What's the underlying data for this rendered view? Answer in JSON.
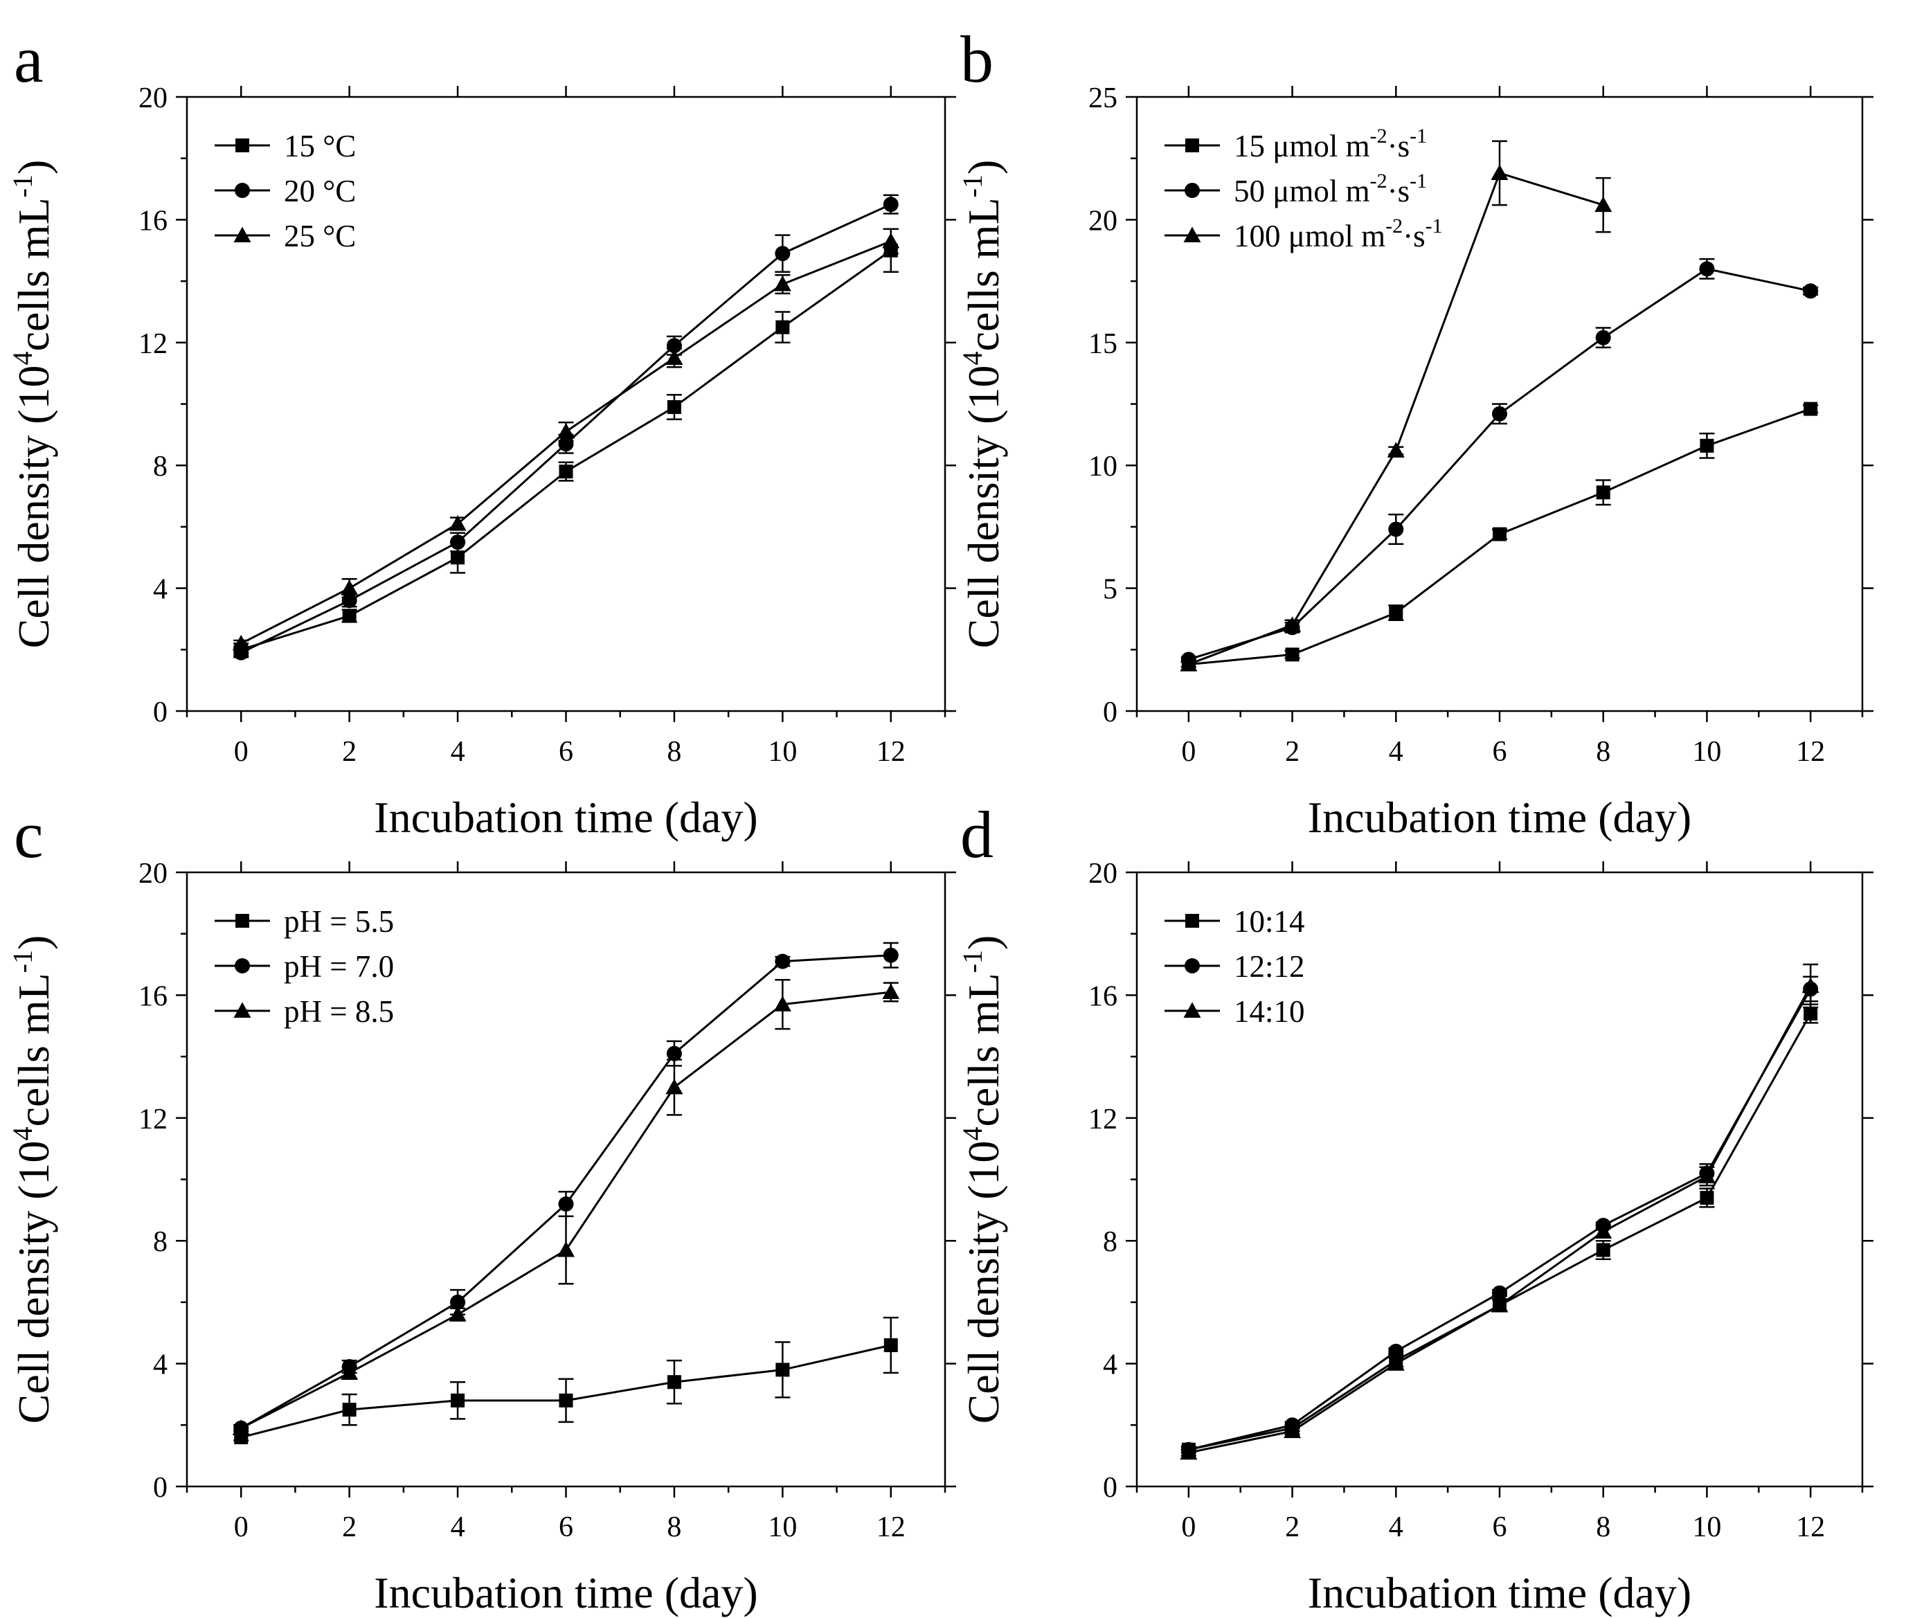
{
  "chart_data": [
    {
      "panel_label": "a",
      "type": "line",
      "xlabel": "Incubation time (day)",
      "ylabel": "Cell density (10",
      "ylabel_sup": "4",
      "ylabel_tail": "cells mL",
      "ylabel_tail_sup": "-1",
      "ylabel_end": ")",
      "xlim": [
        -1,
        13
      ],
      "ylim": [
        0,
        20
      ],
      "xticks": [
        0,
        2,
        4,
        6,
        8,
        10,
        12
      ],
      "yticks": [
        0,
        4,
        8,
        12,
        16,
        20
      ],
      "legend_position": "top-left",
      "series": [
        {
          "name": "15 °C",
          "marker": "square",
          "label_parts": [
            [
              "15 °C",
              ""
            ]
          ],
          "x": [
            0,
            2,
            4,
            6,
            8,
            10,
            12
          ],
          "y": [
            2.0,
            3.1,
            5.0,
            7.8,
            9.9,
            12.5,
            15.0
          ],
          "err": [
            0.2,
            0.2,
            0.5,
            0.3,
            0.4,
            0.5,
            0.7
          ]
        },
        {
          "name": "20 °C",
          "marker": "circle",
          "label_parts": [
            [
              "20 °C",
              ""
            ]
          ],
          "x": [
            0,
            2,
            4,
            6,
            8,
            10,
            12
          ],
          "y": [
            1.9,
            3.6,
            5.5,
            8.7,
            11.9,
            14.9,
            16.5
          ],
          "err": [
            0.15,
            0.2,
            0.3,
            0.3,
            0.3,
            0.6,
            0.3
          ]
        },
        {
          "name": "25 °C",
          "marker": "triangle",
          "label_parts": [
            [
              "25 °C",
              ""
            ]
          ],
          "x": [
            0,
            2,
            4,
            6,
            8,
            10,
            12
          ],
          "y": [
            2.2,
            4.0,
            6.1,
            9.1,
            11.5,
            13.9,
            15.3
          ],
          "err": [
            0.1,
            0.3,
            0.2,
            0.3,
            0.3,
            0.3,
            0.4
          ]
        }
      ]
    },
    {
      "panel_label": "b",
      "type": "line",
      "xlabel": "Incubation time (day)",
      "ylabel": "Cell density (10",
      "ylabel_sup": "4",
      "ylabel_tail": "cells mL",
      "ylabel_tail_sup": "-1",
      "ylabel_end": ")",
      "xlim": [
        -1,
        13
      ],
      "ylim": [
        0,
        25
      ],
      "xticks": [
        0,
        2,
        4,
        6,
        8,
        10,
        12
      ],
      "yticks": [
        0,
        5,
        10,
        15,
        20,
        25
      ],
      "legend_position": "top-left",
      "series": [
        {
          "name": "15 μmol m-2·s-1",
          "marker": "square",
          "label_parts": [
            [
              "15 μmol m",
              ""
            ],
            [
              "-2",
              "sup"
            ],
            [
              "·s",
              ""
            ],
            [
              "-1",
              "sup"
            ]
          ],
          "x": [
            0,
            2,
            4,
            6,
            8,
            10,
            12
          ],
          "y": [
            1.9,
            2.3,
            4.0,
            7.2,
            8.9,
            10.8,
            12.3
          ],
          "err": [
            0.1,
            0.15,
            0.3,
            0.2,
            0.5,
            0.5,
            0.15
          ]
        },
        {
          "name": "50 μmol m-2·s-1",
          "marker": "circle",
          "label_parts": [
            [
              "50 μmol m",
              ""
            ],
            [
              "-2",
              "sup"
            ],
            [
              "·s",
              ""
            ],
            [
              "-1",
              "sup"
            ]
          ],
          "x": [
            0,
            2,
            4,
            6,
            8,
            10,
            12
          ],
          "y": [
            2.1,
            3.4,
            7.4,
            12.1,
            15.2,
            18.0,
            17.1
          ],
          "err": [
            0.1,
            0.2,
            0.6,
            0.4,
            0.4,
            0.4,
            0.15
          ]
        },
        {
          "name": "100 μmol m-2·s-1",
          "marker": "triangle",
          "label_parts": [
            [
              "100 μmol m",
              ""
            ],
            [
              "-2",
              "sup"
            ],
            [
              "·s",
              ""
            ],
            [
              "-1",
              "sup"
            ]
          ],
          "x": [
            0,
            2,
            4,
            6,
            8
          ],
          "y": [
            1.9,
            3.5,
            10.6,
            21.9,
            20.6
          ],
          "err": [
            0.1,
            0.2,
            0.15,
            1.3,
            1.1
          ]
        }
      ]
    },
    {
      "panel_label": "c",
      "type": "line",
      "xlabel": "Incubation time (day)",
      "ylabel": "Cell density (10",
      "ylabel_sup": "4",
      "ylabel_tail": "cells mL",
      "ylabel_tail_sup": "-1",
      "ylabel_end": ")",
      "xlim": [
        -1,
        13
      ],
      "ylim": [
        0,
        20
      ],
      "xticks": [
        0,
        2,
        4,
        6,
        8,
        10,
        12
      ],
      "yticks": [
        0,
        4,
        8,
        12,
        16,
        20
      ],
      "legend_position": "top-left",
      "series": [
        {
          "name": "pH = 5.5",
          "marker": "square",
          "label_parts": [
            [
              "pH = 5.5",
              ""
            ]
          ],
          "x": [
            0,
            2,
            4,
            6,
            8,
            10,
            12
          ],
          "y": [
            1.6,
            2.5,
            2.8,
            2.8,
            3.4,
            3.8,
            4.6
          ],
          "err": [
            0.1,
            0.5,
            0.6,
            0.7,
            0.7,
            0.9,
            0.9
          ]
        },
        {
          "name": "pH = 7.0",
          "marker": "circle",
          "label_parts": [
            [
              "pH = 7.0",
              ""
            ]
          ],
          "x": [
            0,
            2,
            4,
            6,
            8,
            10,
            12
          ],
          "y": [
            1.9,
            3.9,
            6.0,
            9.2,
            14.1,
            17.1,
            17.3
          ],
          "err": [
            0.1,
            0.2,
            0.4,
            0.4,
            0.4,
            0.15,
            0.4
          ]
        },
        {
          "name": "pH = 8.5",
          "marker": "triangle",
          "label_parts": [
            [
              "pH = 8.5",
              ""
            ]
          ],
          "x": [
            0,
            2,
            4,
            6,
            8,
            10,
            12
          ],
          "y": [
            1.9,
            3.7,
            5.6,
            7.7,
            13.0,
            15.7,
            16.1
          ],
          "err": [
            0.1,
            0.2,
            0.2,
            1.1,
            0.9,
            0.8,
            0.3
          ]
        }
      ]
    },
    {
      "panel_label": "d",
      "type": "line",
      "xlabel": "Incubation time (day)",
      "ylabel": "Cell density (10",
      "ylabel_sup": "4",
      "ylabel_tail": "cells mL",
      "ylabel_tail_sup": "-1",
      "ylabel_end": ")",
      "xlim": [
        -1,
        13
      ],
      "ylim": [
        0,
        20
      ],
      "xticks": [
        0,
        2,
        4,
        6,
        8,
        10,
        12
      ],
      "yticks": [
        0,
        4,
        8,
        12,
        16,
        20
      ],
      "legend_position": "top-left",
      "series": [
        {
          "name": "10:14",
          "marker": "square",
          "label_parts": [
            [
              "10:14",
              ""
            ]
          ],
          "x": [
            0,
            2,
            4,
            6,
            8,
            10,
            12
          ],
          "y": [
            1.2,
            1.9,
            4.1,
            5.9,
            7.7,
            9.4,
            15.4
          ],
          "err": [
            0.1,
            0.1,
            0.2,
            0.2,
            0.3,
            0.3,
            0.3
          ]
        },
        {
          "name": "12:12",
          "marker": "circle",
          "label_parts": [
            [
              "12:12",
              ""
            ]
          ],
          "x": [
            0,
            2,
            4,
            6,
            8,
            10,
            12
          ],
          "y": [
            1.2,
            2.0,
            4.4,
            6.3,
            8.5,
            10.2,
            16.2
          ],
          "err": [
            0.1,
            0.1,
            0.1,
            0.1,
            0.1,
            0.3,
            0.4
          ]
        },
        {
          "name": "14:10",
          "marker": "triangle",
          "label_parts": [
            [
              "14:10",
              ""
            ]
          ],
          "x": [
            0,
            2,
            4,
            6,
            8,
            10,
            12
          ],
          "y": [
            1.1,
            1.8,
            4.0,
            5.9,
            8.3,
            10.1,
            16.3
          ],
          "err": [
            0.1,
            0.1,
            0.2,
            0.2,
            0.2,
            0.3,
            0.7
          ]
        }
      ]
    }
  ]
}
